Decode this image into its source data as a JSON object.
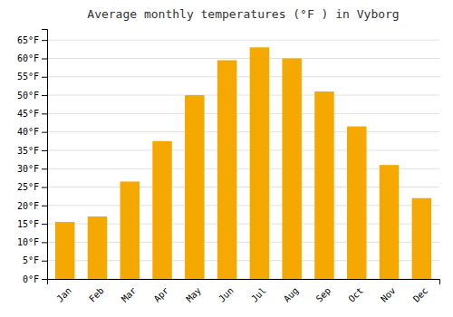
{
  "chart_data": {
    "type": "bar",
    "title": "Average monthly temperatures (°F ) in Vyborg",
    "categories": [
      "Jan",
      "Feb",
      "Mar",
      "Apr",
      "May",
      "Jun",
      "Jul",
      "Aug",
      "Sep",
      "Oct",
      "Nov",
      "Dec"
    ],
    "values": [
      15.5,
      17.0,
      26.5,
      37.5,
      50.0,
      59.5,
      63.0,
      60.0,
      51.0,
      41.5,
      31.0,
      22.0
    ],
    "color": "#F5A800",
    "ylim": [
      0,
      68
    ],
    "yticks": [
      {
        "value": 0,
        "label": "0°F"
      },
      {
        "value": 5,
        "label": "5°F"
      },
      {
        "value": 10,
        "label": "10°F"
      },
      {
        "value": 15,
        "label": "15°F"
      },
      {
        "value": 20,
        "label": "20°F"
      },
      {
        "value": 25,
        "label": "25°F"
      },
      {
        "value": 30,
        "label": "30°F"
      },
      {
        "value": 35,
        "label": "35°F"
      },
      {
        "value": 40,
        "label": "40°F"
      },
      {
        "value": 45,
        "label": "45°F"
      },
      {
        "value": 50,
        "label": "50°F"
      },
      {
        "value": 55,
        "label": "55°F"
      },
      {
        "value": 60,
        "label": "60°F"
      },
      {
        "value": 65,
        "label": "65°F"
      }
    ],
    "grid": true
  }
}
